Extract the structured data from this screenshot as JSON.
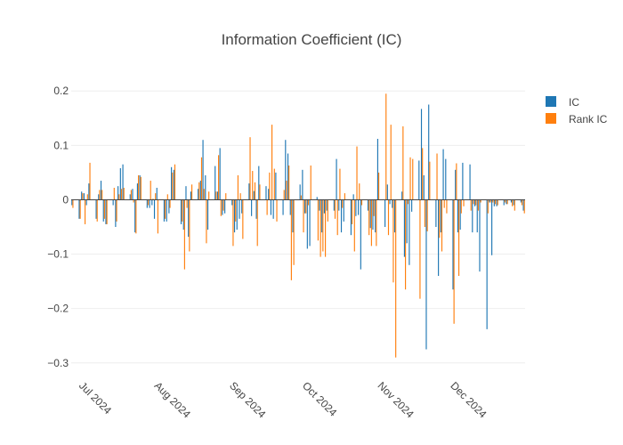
{
  "chart_data": {
    "type": "bar",
    "title": "Information Coefficient (IC)",
    "xlabel": "",
    "ylabel": "",
    "ylim": [
      -0.32,
      0.22
    ],
    "yticks": [
      0.2,
      0.1,
      0,
      -0.1,
      -0.2,
      -0.3
    ],
    "ytick_labels": [
      "0.2",
      "0.1",
      "0",
      "−0.1",
      "−0.2",
      "−0.3"
    ],
    "x_start": "2024-06-28",
    "x_end": "2024-12-31",
    "x_ticks": [
      {
        "date": "2024-07-01",
        "label": "Jul 2024"
      },
      {
        "date": "2024-08-01",
        "label": "Aug 2024"
      },
      {
        "date": "2024-09-01",
        "label": "Sep 2024"
      },
      {
        "date": "2024-10-01",
        "label": "Oct 2024"
      },
      {
        "date": "2024-11-01",
        "label": "Nov 2024"
      },
      {
        "date": "2024-12-01",
        "label": "Dec 2024"
      }
    ],
    "grid": true,
    "legend_position": "top-right",
    "dates": [
      "2024-06-28",
      "2024-07-01",
      "2024-07-02",
      "2024-07-03",
      "2024-07-04",
      "2024-07-05",
      "2024-07-08",
      "2024-07-09",
      "2024-07-10",
      "2024-07-11",
      "2024-07-12",
      "2024-07-15",
      "2024-07-16",
      "2024-07-17",
      "2024-07-18",
      "2024-07-19",
      "2024-07-22",
      "2024-07-23",
      "2024-07-24",
      "2024-07-25",
      "2024-07-26",
      "2024-07-29",
      "2024-07-30",
      "2024-07-31",
      "2024-08-01",
      "2024-08-02",
      "2024-08-05",
      "2024-08-06",
      "2024-08-07",
      "2024-08-08",
      "2024-08-09",
      "2024-08-12",
      "2024-08-13",
      "2024-08-14",
      "2024-08-15",
      "2024-08-16",
      "2024-08-19",
      "2024-08-20",
      "2024-08-21",
      "2024-08-22",
      "2024-08-23",
      "2024-08-26",
      "2024-08-27",
      "2024-08-28",
      "2024-08-29",
      "2024-08-30",
      "2024-09-02",
      "2024-09-03",
      "2024-09-04",
      "2024-09-05",
      "2024-09-06",
      "2024-09-09",
      "2024-09-10",
      "2024-09-11",
      "2024-09-12",
      "2024-09-13",
      "2024-09-16",
      "2024-09-17",
      "2024-09-18",
      "2024-09-19",
      "2024-09-20",
      "2024-09-23",
      "2024-09-24",
      "2024-09-25",
      "2024-09-26",
      "2024-09-27",
      "2024-09-30",
      "2024-10-01",
      "2024-10-02",
      "2024-10-03",
      "2024-10-04",
      "2024-10-07",
      "2024-10-08",
      "2024-10-09",
      "2024-10-10",
      "2024-10-11",
      "2024-10-14",
      "2024-10-15",
      "2024-10-16",
      "2024-10-17",
      "2024-10-18",
      "2024-10-21",
      "2024-10-22",
      "2024-10-23",
      "2024-10-24",
      "2024-10-25",
      "2024-10-28",
      "2024-10-29",
      "2024-10-30",
      "2024-10-31",
      "2024-11-01",
      "2024-11-04",
      "2024-11-05",
      "2024-11-06",
      "2024-11-07",
      "2024-11-08",
      "2024-11-11",
      "2024-11-12",
      "2024-11-13",
      "2024-11-14",
      "2024-11-15",
      "2024-11-18",
      "2024-11-19",
      "2024-11-20",
      "2024-11-21",
      "2024-11-22",
      "2024-11-25",
      "2024-11-26",
      "2024-11-27",
      "2024-11-28",
      "2024-11-29",
      "2024-12-02",
      "2024-12-03",
      "2024-12-04",
      "2024-12-05",
      "2024-12-06",
      "2024-12-09",
      "2024-12-10",
      "2024-12-11",
      "2024-12-12",
      "2024-12-13",
      "2024-12-16",
      "2024-12-17",
      "2024-12-18",
      "2024-12-19",
      "2024-12-20",
      "2024-12-23",
      "2024-12-24",
      "2024-12-26",
      "2024-12-27",
      "2024-12-30",
      "2024-12-31"
    ],
    "series": [
      {
        "name": "IC",
        "color": "#1f77b4",
        "values": [
          -0.01,
          -0.035,
          0.015,
          0.012,
          -0.01,
          0.03,
          -0.035,
          0.01,
          0.035,
          -0.04,
          -0.045,
          -0.01,
          -0.05,
          0.025,
          0.058,
          0.065,
          0.01,
          0.02,
          -0.06,
          0.03,
          0.045,
          -0.015,
          -0.015,
          -0.01,
          -0.035,
          0.022,
          -0.04,
          -0.04,
          -0.025,
          0.06,
          0.055,
          -0.045,
          -0.055,
          0.025,
          -0.068,
          0.015,
          0.02,
          0.035,
          0.11,
          0.045,
          -0.055,
          0.062,
          0.015,
          0.095,
          -0.028,
          -0.025,
          -0.01,
          -0.06,
          -0.055,
          -0.035,
          -0.025,
          0.03,
          -0.03,
          0.016,
          -0.035,
          0.062,
          0.025,
          0.02,
          -0.028,
          -0.035,
          0.05,
          -0.028,
          0.11,
          0.085,
          -0.028,
          -0.06,
          0.028,
          0.055,
          -0.025,
          -0.09,
          -0.085,
          0.005,
          -0.02,
          -0.06,
          -0.025,
          -0.02,
          -0.02,
          0.075,
          -0.02,
          -0.06,
          -0.04,
          -0.065,
          0.01,
          -0.03,
          -0.028,
          -0.128,
          -0.02,
          -0.052,
          -0.055,
          -0.06,
          0.112,
          -0.05,
          0.028,
          -0.008,
          -0.015,
          -0.06,
          0.015,
          -0.105,
          -0.08,
          -0.12,
          -0.022,
          0.072,
          0.167,
          0.045,
          -0.275,
          0.175,
          -0.05,
          -0.14,
          -0.06,
          0.093,
          0.075,
          -0.165,
          0.055,
          -0.06,
          -0.055,
          0.068,
          0.065,
          -0.06,
          -0.012,
          -0.06,
          -0.132,
          -0.238,
          -0.005,
          -0.102,
          -0.012,
          -0.012,
          -0.01,
          -0.008,
          -0.005,
          -0.01,
          -0.005,
          -0.02
        ]
      },
      {
        "name": "Rank IC",
        "color": "#ff7f0e",
        "values": [
          -0.015,
          -0.035,
          0.012,
          -0.045,
          0.01,
          0.068,
          -0.04,
          0.018,
          0.018,
          -0.035,
          -0.045,
          0.022,
          -0.04,
          0.01,
          0.02,
          0.022,
          0.018,
          -0.005,
          -0.062,
          0.045,
          0.042,
          -0.01,
          0.035,
          0.002,
          0.012,
          -0.062,
          -0.035,
          0.01,
          -0.015,
          0.05,
          0.065,
          -0.04,
          -0.128,
          -0.015,
          -0.095,
          0.028,
          0.032,
          0.078,
          0.02,
          -0.08,
          0.015,
          0.015,
          0.082,
          -0.03,
          -0.02,
          0.012,
          -0.085,
          -0.04,
          0.045,
          0.012,
          -0.072,
          0.115,
          0.053,
          0.032,
          -0.085,
          0.028,
          -0.028,
          0.05,
          0.138,
          0.057,
          -0.04,
          0.018,
          0.035,
          0.063,
          -0.148,
          -0.12,
          0.008,
          -0.06,
          -0.025,
          -0.01,
          0.063,
          -0.075,
          -0.105,
          -0.095,
          -0.105,
          -0.04,
          -0.035,
          -0.065,
          0.057,
          -0.015,
          0.012,
          -0.045,
          -0.095,
          0.098,
          0.03,
          -0.01,
          -0.065,
          -0.085,
          -0.03,
          -0.085,
          0.05,
          0.195,
          -0.065,
          0.138,
          -0.152,
          -0.29,
          0.135,
          -0.165,
          -0.008,
          0.078,
          0.075,
          -0.182,
          0.095,
          -0.05,
          -0.058,
          0.07,
          0.085,
          -0.07,
          -0.095,
          -0.015,
          -0.025,
          -0.228,
          0.067,
          -0.14,
          -0.025,
          -0.012,
          -0.02,
          -0.008,
          -0.01,
          -0.02,
          -0.005,
          -0.025,
          -0.005,
          -0.005,
          -0.008,
          -0.01,
          -0.005,
          -0.008,
          -0.012,
          -0.02,
          -0.01,
          -0.025
        ]
      }
    ]
  }
}
